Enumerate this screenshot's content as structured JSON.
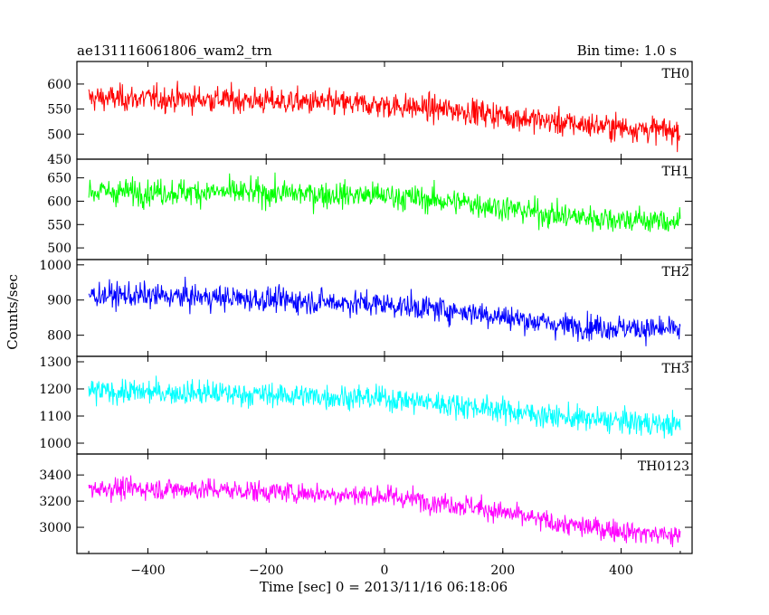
{
  "chart_data": {
    "type": "line",
    "title": "ae131116061806_wam2_trn",
    "bin_time_label": "Bin time: 1.0 s",
    "xlabel": "Time [sec] 0 = 2013/11/16 06:18:06",
    "ylabel": "Counts/sec",
    "xlim": [
      -520,
      520
    ],
    "x_ticks": [
      -400,
      -200,
      0,
      200,
      400
    ],
    "x_tick_labels": [
      "−400",
      "−200",
      "0",
      "200",
      "400"
    ],
    "x_range_data": [
      -500,
      500
    ],
    "panels": [
      {
        "name": "TH0",
        "color": "#ff0000",
        "ylim": [
          450,
          645
        ],
        "y_ticks": [
          450,
          500,
          550,
          600
        ],
        "trend": [
          [
            -500,
            572
          ],
          [
            -300,
            570
          ],
          [
            0,
            558
          ],
          [
            150,
            545
          ],
          [
            300,
            522
          ],
          [
            500,
            505
          ]
        ],
        "noise_sigma": 22
      },
      {
        "name": "TH1",
        "color": "#00ff00",
        "ylim": [
          475,
          690
        ],
        "y_ticks": [
          500,
          550,
          600,
          650
        ],
        "trend": [
          [
            -500,
            620
          ],
          [
            -300,
            620
          ],
          [
            0,
            612
          ],
          [
            150,
            595
          ],
          [
            300,
            568
          ],
          [
            500,
            555
          ]
        ],
        "noise_sigma": 24
      },
      {
        "name": "TH2",
        "color": "#0000ff",
        "ylim": [
          740,
          1015
        ],
        "y_ticks": [
          800,
          900,
          1000
        ],
        "trend": [
          [
            -500,
            915
          ],
          [
            -300,
            908
          ],
          [
            0,
            888
          ],
          [
            150,
            865
          ],
          [
            300,
            828
          ],
          [
            500,
            815
          ]
        ],
        "noise_sigma": 30
      },
      {
        "name": "TH3",
        "color": "#00ffff",
        "ylim": [
          960,
          1320
        ],
        "y_ticks": [
          1000,
          1100,
          1200,
          1300
        ],
        "trend": [
          [
            -500,
            1190
          ],
          [
            -300,
            1185
          ],
          [
            0,
            1165
          ],
          [
            150,
            1135
          ],
          [
            300,
            1095
          ],
          [
            500,
            1065
          ]
        ],
        "noise_sigma": 38
      },
      {
        "name": "TH0123",
        "color": "#ff00ff",
        "ylim": [
          2800,
          3560
        ],
        "y_ticks": [
          3000,
          3200,
          3400
        ],
        "trend": [
          [
            -500,
            3300
          ],
          [
            -300,
            3290
          ],
          [
            0,
            3240
          ],
          [
            150,
            3160
          ],
          [
            300,
            3020
          ],
          [
            500,
            2930
          ]
        ],
        "noise_sigma": 70
      }
    ]
  }
}
